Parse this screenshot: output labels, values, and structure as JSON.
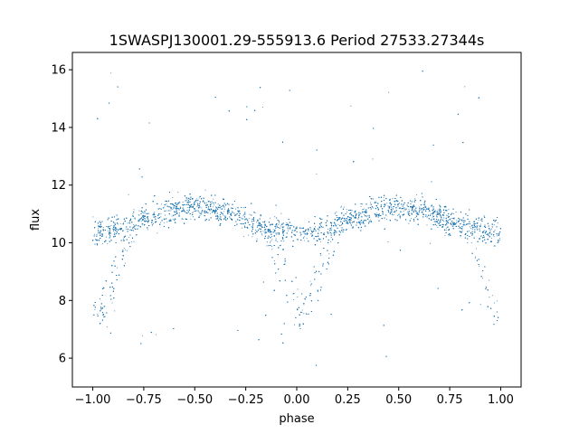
{
  "chart_data": {
    "type": "scatter",
    "title": "1SWASPJ130001.29-555913.6 Period 27533.27344s",
    "xlabel": "phase",
    "ylabel": "flux",
    "xlim": [
      -1.1,
      1.1
    ],
    "ylim": [
      5.0,
      16.6
    ],
    "xticks": [
      -1.0,
      -0.75,
      -0.5,
      -0.25,
      0.0,
      0.25,
      0.5,
      0.75,
      1.0
    ],
    "xtick_labels": [
      "−1.00",
      "−0.75",
      "−0.50",
      "−0.25",
      "0.00",
      "0.25",
      "0.50",
      "0.75",
      "1.00"
    ],
    "yticks": [
      6,
      8,
      10,
      12,
      14,
      16
    ],
    "ytick_labels": [
      "6",
      "8",
      "10",
      "12",
      "14",
      "16"
    ],
    "grid": false,
    "marker_color": "#1f77b4",
    "light_curve": {
      "phase_range": [
        -1.0,
        1.0
      ],
      "baseline_flux": 10.4,
      "maximum_flux": 11.3,
      "maximum_phases": [
        -0.55,
        0.45
      ],
      "primary_minimum_flux": 7.4,
      "primary_minimum_phases": [
        -1.0,
        0.0,
        1.0
      ],
      "secondary_minimum_flux": 7.6,
      "secondary_minimum_phases": [
        -0.95,
        0.05
      ],
      "scatter_sigma": 0.35,
      "outlier_flux_range": [
        5.6,
        16.1
      ]
    }
  }
}
